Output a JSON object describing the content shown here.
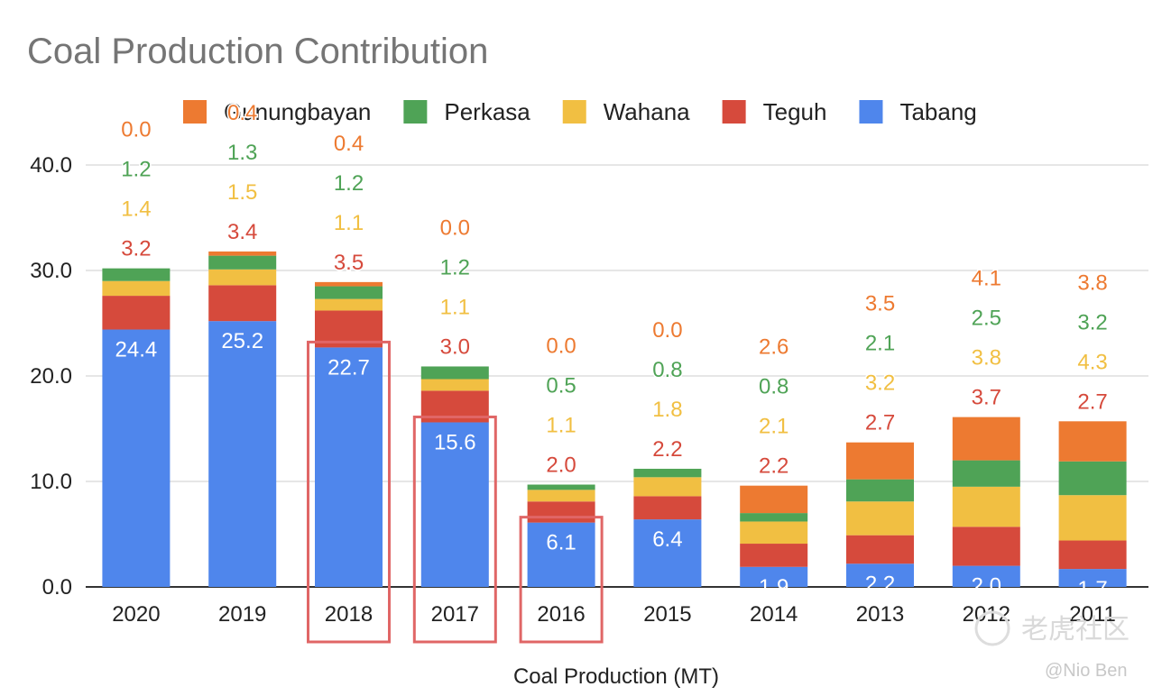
{
  "chart_data": {
    "type": "bar",
    "stacked": true,
    "title": "Coal Production Contribution",
    "xlabel": "Coal Production (MT)",
    "ylabel": "",
    "ylim": [
      0,
      40
    ],
    "yticks": [
      "0.0",
      "10.0",
      "20.0",
      "30.0",
      "40.0"
    ],
    "categories": [
      "2020",
      "2019",
      "2018",
      "2017",
      "2016",
      "2015",
      "2014",
      "2013",
      "2012",
      "2011"
    ],
    "legend_position": "top",
    "grid": true,
    "series": [
      {
        "name": "Tabang",
        "color": "#4f86ec",
        "values": [
          24.4,
          25.2,
          22.7,
          15.6,
          6.1,
          6.4,
          1.9,
          2.2,
          2.0,
          1.7
        ]
      },
      {
        "name": "Teguh",
        "color": "#d64a3c",
        "values": [
          3.2,
          3.4,
          3.5,
          3.0,
          2.0,
          2.2,
          2.2,
          2.7,
          3.7,
          2.7
        ]
      },
      {
        "name": "Wahana",
        "color": "#f1bf42",
        "values": [
          1.4,
          1.5,
          1.1,
          1.1,
          1.1,
          1.8,
          2.1,
          3.2,
          3.8,
          4.3
        ]
      },
      {
        "name": "Perkasa",
        "color": "#4fa356",
        "values": [
          1.2,
          1.3,
          1.2,
          1.2,
          0.5,
          0.8,
          0.8,
          2.1,
          2.5,
          3.2
        ]
      },
      {
        "name": "Gunungbayan",
        "color": "#ed7a31",
        "values": [
          0.0,
          0.4,
          0.4,
          0.0,
          0.0,
          0.0,
          2.6,
          3.5,
          4.1,
          3.8
        ]
      }
    ],
    "legend_order": [
      "Gunungbayan",
      "Perkasa",
      "Wahana",
      "Teguh",
      "Tabang"
    ],
    "highlighted_categories": [
      "2018",
      "2017",
      "2016"
    ],
    "highlight_color": "#e06666"
  },
  "watermark": "老虎社区",
  "credit": "@Nio Ben"
}
